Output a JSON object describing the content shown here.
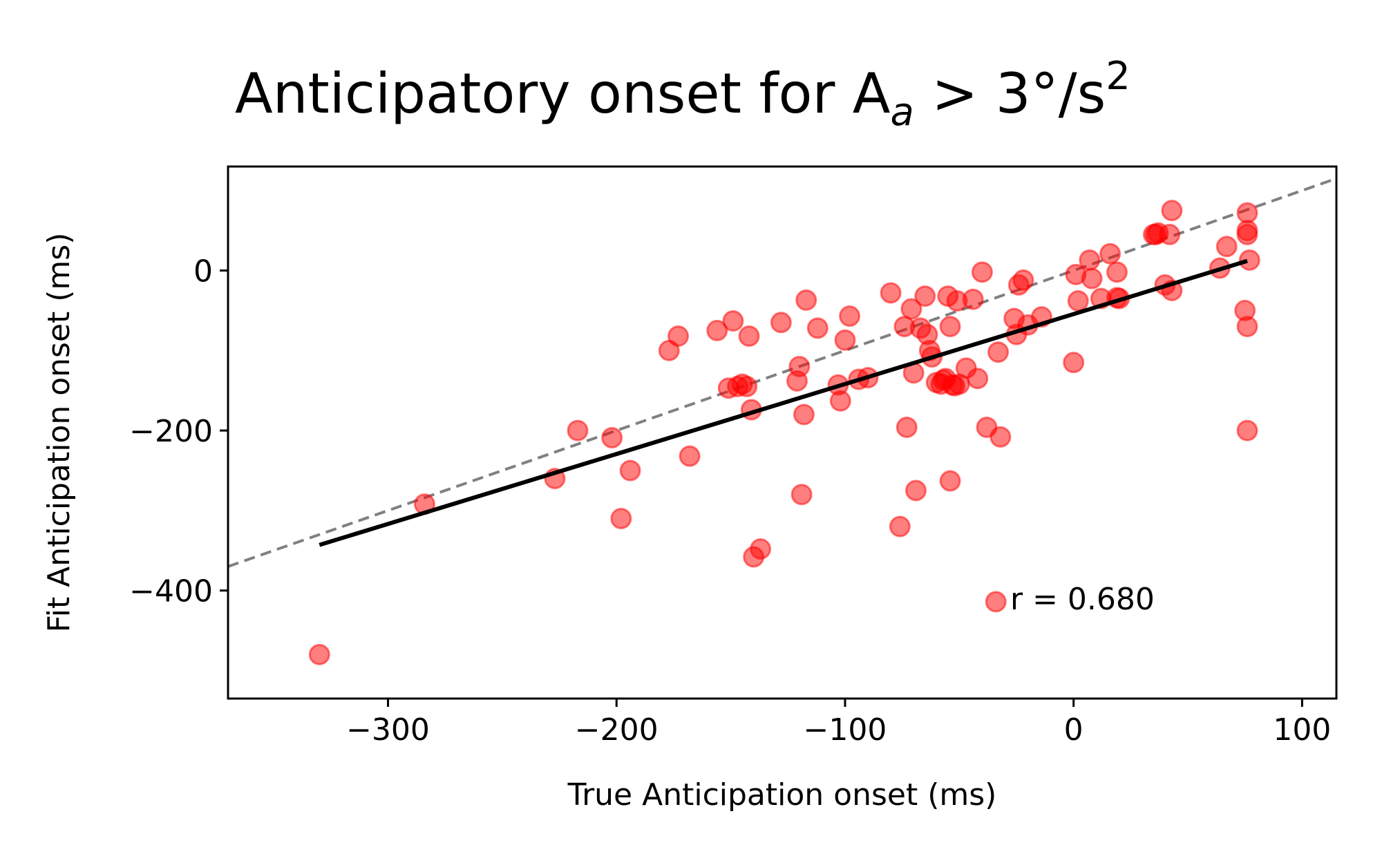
{
  "chart_data": {
    "type": "scatter",
    "title": {
      "main": "Anticipatory onset for A",
      "subscript": "a",
      "middle": " > 3°/s",
      "superscript": "2"
    },
    "xlabel": "True Anticipation onset (ms)",
    "ylabel": "Fit Anticipation onset (ms)",
    "xlim": [
      -370,
      115
    ],
    "ylim": [
      -535,
      130
    ],
    "xticks": [
      -300,
      -200,
      -100,
      0,
      100
    ],
    "yticks": [
      -400,
      -200,
      0
    ],
    "xtick_labels": [
      "−300",
      "−200",
      "−100",
      "0",
      "100"
    ],
    "ytick_labels": [
      "−400",
      "−200",
      "0"
    ],
    "grid": false,
    "annotation": "r = 0.680",
    "colors": {
      "points": "#ff0000",
      "fit_line": "#000000",
      "identity_line": "#808080"
    },
    "fit_line": {
      "x": [
        -330,
        76
      ],
      "y": [
        -343,
        12
      ]
    },
    "identity_line": {
      "x": [
        -370,
        115
      ],
      "y": [
        -370,
        115
      ]
    },
    "points": {
      "x": [
        -330,
        -284,
        -227,
        -217,
        -202,
        -198,
        -194,
        -177,
        -173,
        -168,
        -156,
        -151,
        -149,
        -147,
        -143,
        -142,
        -141,
        -140,
        -137,
        -145,
        -128,
        -121,
        -120,
        -119,
        -118,
        -117,
        -112,
        -103,
        -102,
        -100,
        -98,
        -94,
        -90,
        -80,
        -76,
        -74,
        -73,
        -71,
        -70,
        -69,
        -67,
        -65,
        -64,
        -63,
        -62,
        -60,
        -58,
        -57,
        -56,
        -55,
        -54,
        -54,
        -53,
        -52,
        -51,
        -50,
        -47,
        -44,
        -42,
        -40,
        -38,
        -34,
        -33,
        -32,
        -26,
        -25,
        -24,
        -22,
        -20,
        -14,
        0,
        1,
        2,
        7,
        8,
        12,
        16,
        19,
        19,
        20,
        35,
        36,
        37,
        40,
        42,
        43,
        43,
        64,
        67,
        75,
        76,
        76,
        76,
        76,
        76,
        77
      ],
      "y": [
        -480,
        -292,
        -260,
        -200,
        -209,
        -310,
        -250,
        -100,
        -82,
        -232,
        -75,
        -147,
        -63,
        -145,
        -145,
        -82,
        -174,
        -358,
        -348,
        -142,
        -65,
        -138,
        -120,
        -280,
        -180,
        -37,
        -72,
        -143,
        -163,
        -87,
        -57,
        -136,
        -134,
        -28,
        -320,
        -70,
        -196,
        -48,
        -128,
        -275,
        -72,
        -32,
        -80,
        -100,
        -108,
        -140,
        -142,
        -137,
        -135,
        -32,
        -70,
        -263,
        -143,
        -144,
        -38,
        -142,
        -122,
        -36,
        -135,
        -2,
        -196,
        -414,
        -102,
        -208,
        -60,
        -80,
        -18,
        -12,
        -68,
        -58,
        -115,
        -5,
        -38,
        13,
        -10,
        -35,
        21,
        -34,
        -2,
        -35,
        45,
        45,
        47,
        -18,
        45,
        -25,
        75,
        3,
        30,
        -50,
        -200,
        45,
        -70,
        72,
        50,
        13
      ]
    }
  }
}
